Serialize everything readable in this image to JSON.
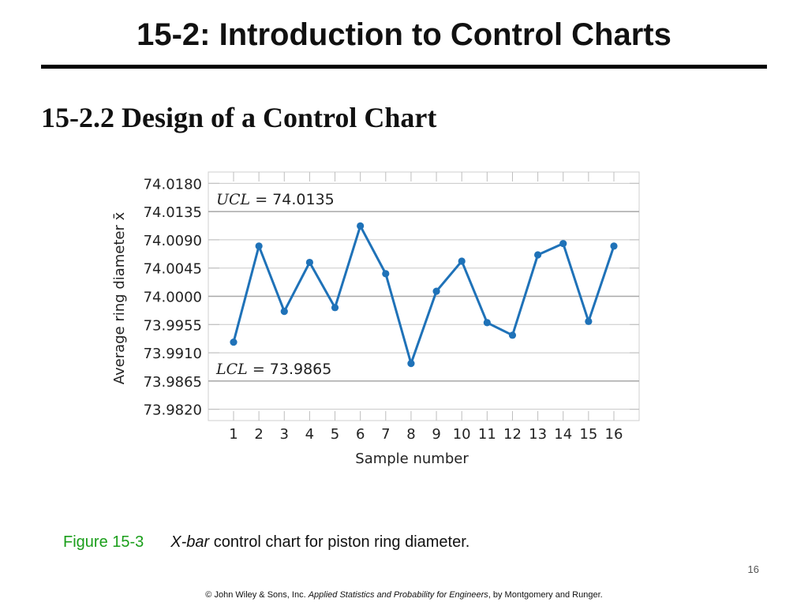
{
  "slide": {
    "title": "15-2: Introduction to Control Charts",
    "heading": "15-2.2 Design of a Control Chart",
    "page_number": "16"
  },
  "caption": {
    "label": "Figure 15-3",
    "italic": "X-bar",
    "text": " control chart for piston ring diameter."
  },
  "footer": {
    "prefix": "© John Wiley & Sons, Inc.  ",
    "book": "Applied Statistics and Probability for Engineers",
    "suffix": ", by Montgomery and Runger."
  },
  "chart_data": {
    "type": "line",
    "xlabel": "Sample number",
    "ylabel": "Average ring diameter x̄",
    "x": [
      1,
      2,
      3,
      4,
      5,
      6,
      7,
      8,
      9,
      10,
      11,
      12,
      13,
      14,
      15,
      16
    ],
    "y": [
      73.9927,
      74.008,
      73.9976,
      74.0054,
      73.9982,
      74.0112,
      74.0036,
      73.9893,
      74.0008,
      74.0056,
      73.9958,
      73.9938,
      74.0066,
      74.0084,
      73.996,
      74.008
    ],
    "ylim": [
      73.9802,
      74.0198
    ],
    "y_ticks": [
      "74.0180",
      "74.0135",
      "74.0090",
      "74.0045",
      "74.0000",
      "73.9955",
      "73.9910",
      "73.9865",
      "73.9820"
    ],
    "y_tick_values": [
      74.018,
      74.0135,
      74.009,
      74.0045,
      74.0,
      73.9955,
      73.991,
      73.9865,
      73.982
    ],
    "x_ticks": [
      "1",
      "2",
      "3",
      "4",
      "5",
      "6",
      "7",
      "8",
      "9",
      "10",
      "11",
      "12",
      "13",
      "14",
      "15",
      "16"
    ],
    "control_lines": [
      {
        "name": "UCL",
        "label": "UCL",
        "value_text": " = 74.0135",
        "value": 74.0135
      },
      {
        "name": "CL",
        "label": "",
        "value_text": "",
        "value": 74.0
      },
      {
        "name": "LCL",
        "label": "LCL",
        "value_text": " = 73.9865",
        "value": 73.9865
      }
    ],
    "grid": true,
    "colors": {
      "series": "#1f72b8",
      "grid": "#c8c8c8",
      "text": "#222222"
    }
  }
}
